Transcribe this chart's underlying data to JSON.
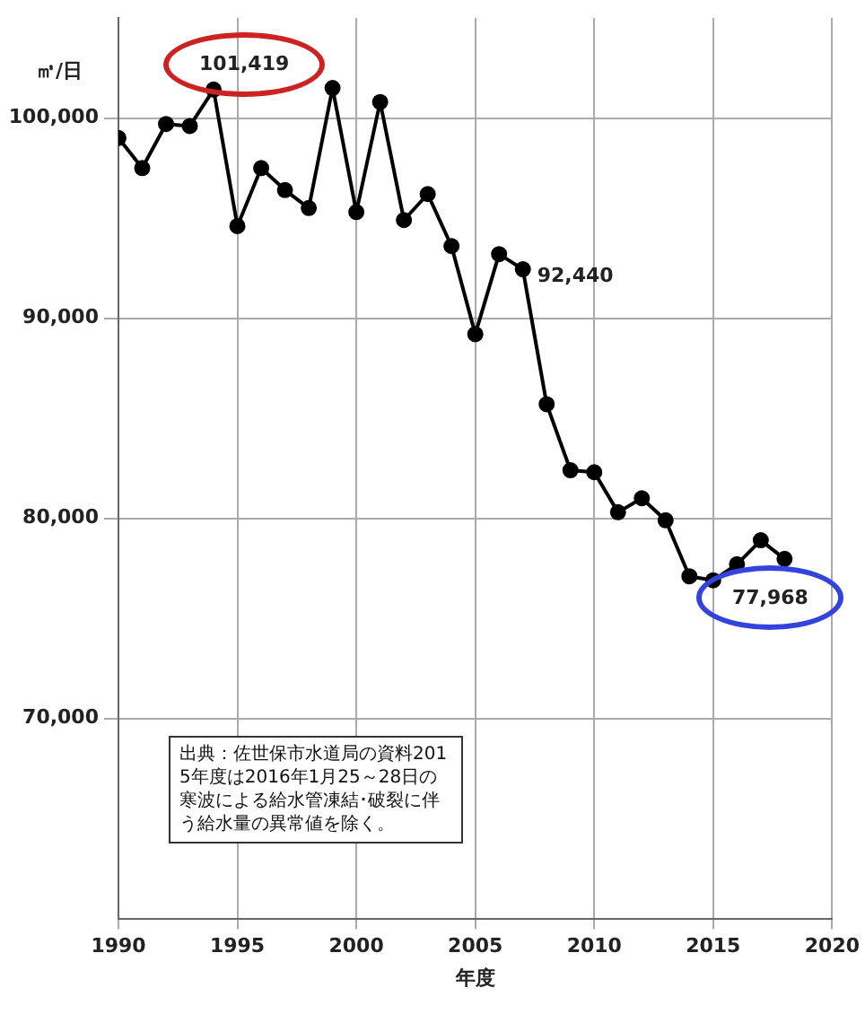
{
  "chart_data": {
    "type": "line",
    "xlabel": "年度",
    "ylabel": "㎥/日",
    "x": [
      1990,
      1991,
      1992,
      1993,
      1994,
      1995,
      1996,
      1997,
      1998,
      1999,
      2000,
      2001,
      2002,
      2003,
      2004,
      2005,
      2006,
      2007,
      2008,
      2009,
      2010,
      2011,
      2012,
      2013,
      2014,
      2015,
      2016,
      2017,
      2018
    ],
    "series": [
      {
        "color": "#000000",
        "values": [
          99000,
          97500,
          99700,
          99600,
          101419,
          94600,
          97500,
          96400,
          95500,
          101500,
          95300,
          100800,
          94900,
          96200,
          93600,
          89200,
          93200,
          92440,
          85700,
          82400,
          82300,
          80300,
          81000,
          79900,
          77100,
          76900,
          77700,
          78900,
          77968
        ]
      }
    ],
    "xlim": [
      1990,
      2020
    ],
    "xticks": [
      1990,
      1995,
      2000,
      2005,
      2010,
      2015,
      2020
    ],
    "ylim": [
      60000,
      105000
    ],
    "yticks": [
      {
        "value": 70000,
        "label": "70,000"
      },
      {
        "value": 80000,
        "label": "80,000"
      },
      {
        "value": 90000,
        "label": "90,000"
      },
      {
        "value": 100000,
        "label": "100,000"
      }
    ],
    "grid": true,
    "marker": "circle",
    "line_style": "solid",
    "legend": false,
    "annotations": [
      {
        "text": "101,419",
        "x": 1994,
        "y": 101419
      },
      {
        "text": "92,440",
        "x": 2007,
        "y": 92440
      },
      {
        "text": "77,968",
        "x": 2018,
        "y": 77968
      },
      "出典：佐世保市水道局の資料2015年度は2016年1月25～28日の寒波による給水管凍結･破裂に伴う給水量の異常値を除く。"
    ]
  }
}
